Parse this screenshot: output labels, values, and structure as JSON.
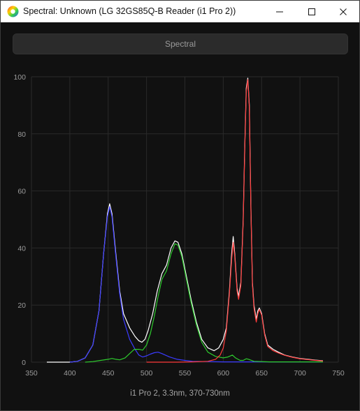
{
  "window": {
    "title": "Spectral: Unknown (LG 32GS85Q-B Reader (i1 Pro 2))",
    "app_icon": "spectral-rainbow-icon",
    "controls": [
      "minimize-icon",
      "maximize-icon",
      "close-icon"
    ]
  },
  "toolbar": {
    "spectral_label": "Spectral"
  },
  "caption": "i1 Pro 2, 3.3nm, 370-730nm",
  "chart_data": {
    "type": "line",
    "title": "",
    "xlabel": "",
    "ylabel": "",
    "xlim": [
      350,
      750
    ],
    "ylim": [
      0,
      100
    ],
    "x_ticks": [
      350,
      400,
      450,
      500,
      550,
      600,
      650,
      700,
      750
    ],
    "y_ticks": [
      0,
      20,
      40,
      60,
      80,
      100
    ],
    "grid": true,
    "series": [
      {
        "color": "#ffffff",
        "points": [
          [
            370,
            0
          ],
          [
            400,
            0
          ],
          [
            410,
            0.3
          ],
          [
            420,
            1.5
          ],
          [
            430,
            6
          ],
          [
            438,
            18
          ],
          [
            444,
            38
          ],
          [
            449,
            52
          ],
          [
            452,
            55.5
          ],
          [
            455,
            52
          ],
          [
            460,
            38
          ],
          [
            465,
            25
          ],
          [
            470,
            17
          ],
          [
            478,
            12
          ],
          [
            485,
            9
          ],
          [
            490,
            7.5
          ],
          [
            494,
            7
          ],
          [
            498,
            8
          ],
          [
            502,
            11
          ],
          [
            508,
            17
          ],
          [
            514,
            25
          ],
          [
            520,
            31
          ],
          [
            526,
            34
          ],
          [
            532,
            40
          ],
          [
            537,
            42.5
          ],
          [
            541,
            42
          ],
          [
            546,
            38
          ],
          [
            552,
            30
          ],
          [
            558,
            22
          ],
          [
            565,
            14
          ],
          [
            572,
            8
          ],
          [
            580,
            5
          ],
          [
            588,
            4
          ],
          [
            594,
            5
          ],
          [
            600,
            8
          ],
          [
            604,
            12
          ],
          [
            608,
            25
          ],
          [
            611,
            38
          ],
          [
            613,
            44
          ],
          [
            615,
            38
          ],
          [
            618,
            26
          ],
          [
            620,
            23
          ],
          [
            623,
            28
          ],
          [
            626,
            50
          ],
          [
            628,
            75
          ],
          [
            630,
            96
          ],
          [
            632,
            99.5
          ],
          [
            634,
            90
          ],
          [
            636,
            55
          ],
          [
            638,
            28
          ],
          [
            640,
            20
          ],
          [
            643,
            15
          ],
          [
            645,
            18
          ],
          [
            647,
            19
          ],
          [
            650,
            17
          ],
          [
            654,
            10
          ],
          [
            658,
            6
          ],
          [
            665,
            4.5
          ],
          [
            672,
            3.5
          ],
          [
            680,
            2.5
          ],
          [
            690,
            1.8
          ],
          [
            700,
            1.3
          ],
          [
            710,
            1
          ],
          [
            720,
            0.7
          ],
          [
            730,
            0.5
          ]
        ]
      },
      {
        "color": "#3b3bff",
        "points": [
          [
            400,
            0
          ],
          [
            410,
            0.3
          ],
          [
            420,
            1.5
          ],
          [
            430,
            6
          ],
          [
            438,
            18
          ],
          [
            444,
            38
          ],
          [
            449,
            51
          ],
          [
            452,
            54.5
          ],
          [
            455,
            51
          ],
          [
            460,
            37
          ],
          [
            465,
            24
          ],
          [
            470,
            15
          ],
          [
            478,
            8
          ],
          [
            485,
            4.5
          ],
          [
            490,
            2.5
          ],
          [
            495,
            1.8
          ],
          [
            500,
            2.2
          ],
          [
            505,
            2.8
          ],
          [
            510,
            3.3
          ],
          [
            515,
            3.5
          ],
          [
            520,
            3
          ],
          [
            530,
            1.8
          ],
          [
            540,
            1
          ],
          [
            550,
            0.6
          ],
          [
            560,
            0.3
          ],
          [
            580,
            0.2
          ],
          [
            600,
            0.1
          ],
          [
            630,
            0.1
          ],
          [
            700,
            0.1
          ],
          [
            730,
            0.1
          ]
        ]
      },
      {
        "color": "#2ecc2e",
        "points": [
          [
            420,
            0
          ],
          [
            430,
            0.2
          ],
          [
            440,
            0.6
          ],
          [
            450,
            1
          ],
          [
            455,
            1.3
          ],
          [
            460,
            1
          ],
          [
            465,
            0.8
          ],
          [
            472,
            1.5
          ],
          [
            478,
            3
          ],
          [
            484,
            4.5
          ],
          [
            490,
            4.5
          ],
          [
            495,
            4.2
          ],
          [
            500,
            6
          ],
          [
            505,
            10
          ],
          [
            510,
            16
          ],
          [
            515,
            23
          ],
          [
            520,
            29
          ],
          [
            526,
            32
          ],
          [
            532,
            38
          ],
          [
            537,
            41.5
          ],
          [
            541,
            41
          ],
          [
            546,
            37
          ],
          [
            552,
            29
          ],
          [
            558,
            21
          ],
          [
            565,
            13
          ],
          [
            572,
            7
          ],
          [
            580,
            3.5
          ],
          [
            590,
            2
          ],
          [
            600,
            1.5
          ],
          [
            606,
            1.8
          ],
          [
            612,
            2.5
          ],
          [
            616,
            1.5
          ],
          [
            622,
            0.6
          ],
          [
            626,
            0.6
          ],
          [
            630,
            1.2
          ],
          [
            633,
            1
          ],
          [
            640,
            0.3
          ],
          [
            660,
            0.1
          ],
          [
            700,
            0.1
          ],
          [
            730,
            0.1
          ]
        ]
      },
      {
        "color": "#ff3b3b",
        "points": [
          [
            500,
            0
          ],
          [
            540,
            0
          ],
          [
            560,
            0.1
          ],
          [
            580,
            0.3
          ],
          [
            590,
            1
          ],
          [
            596,
            2.5
          ],
          [
            600,
            5
          ],
          [
            604,
            11
          ],
          [
            608,
            24
          ],
          [
            611,
            36
          ],
          [
            613,
            42
          ],
          [
            615,
            37
          ],
          [
            618,
            25
          ],
          [
            620,
            22
          ],
          [
            623,
            27
          ],
          [
            626,
            49
          ],
          [
            628,
            74
          ],
          [
            630,
            95
          ],
          [
            632,
            99
          ],
          [
            634,
            89
          ],
          [
            636,
            54
          ],
          [
            638,
            27
          ],
          [
            640,
            19
          ],
          [
            643,
            14
          ],
          [
            645,
            17
          ],
          [
            647,
            18.5
          ],
          [
            650,
            16.5
          ],
          [
            654,
            9.5
          ],
          [
            658,
            5.5
          ],
          [
            665,
            4
          ],
          [
            672,
            3.2
          ],
          [
            680,
            2.4
          ],
          [
            690,
            1.7
          ],
          [
            700,
            1.2
          ],
          [
            710,
            0.9
          ],
          [
            720,
            0.6
          ],
          [
            730,
            0.4
          ]
        ]
      }
    ]
  }
}
